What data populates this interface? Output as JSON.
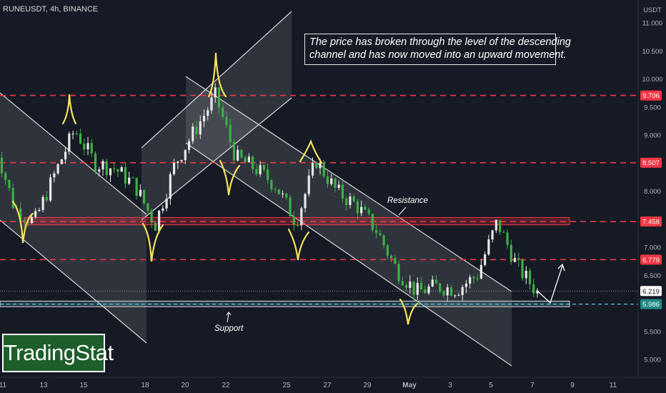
{
  "header": {
    "title": "RUNEUSDT, 4h, BINANCE"
  },
  "annotation": {
    "line1": "The price has broken through the level of the descending",
    "line2": "channel and has now moved into an upward movement."
  },
  "logo": {
    "text": "TradingStat"
  },
  "labels": {
    "resistance": "Resistance",
    "support": "Support"
  },
  "colors": {
    "background": "#161a25",
    "red_level": "#f23645",
    "up_candle": "#e8e8e8",
    "down_candle": "#3bb143",
    "support_zone": "#5ec3d6",
    "wave": "#f5e25a"
  },
  "chart_data": {
    "type": "candlestick",
    "title": "RUNEUSDT, 4h, BINANCE",
    "currency": "USDT",
    "ylim": [
      4.75,
      11.3
    ],
    "y_ticks": [
      "11.000",
      "10.500",
      "10.000",
      "9.500",
      "9.000",
      "8.500",
      "8.000",
      "7.500",
      "7.000",
      "6.500",
      "6.000",
      "5.500",
      "5.000"
    ],
    "x_ticks": [
      "11",
      "13",
      "15",
      "18",
      "20",
      "22",
      "25",
      "27",
      "29",
      "May",
      "3",
      "5",
      "7",
      "9",
      "11"
    ],
    "price_levels": [
      {
        "label": "9.706",
        "value": 9.706,
        "color": "red"
      },
      {
        "label": "8.507",
        "value": 8.507,
        "color": "red"
      },
      {
        "label": "7.458",
        "value": 7.458,
        "color": "red"
      },
      {
        "label": "6.779",
        "value": 6.779,
        "color": "red"
      },
      {
        "label": "6.219",
        "value": 6.219,
        "color": "last"
      },
      {
        "label": "5.986",
        "value": 5.986,
        "color": "teal"
      }
    ],
    "zones": [
      {
        "name": "Resistance",
        "low": 7.4,
        "high": 7.53
      },
      {
        "name": "Support",
        "low": 5.94,
        "high": 6.04
      }
    ],
    "close_path": [
      [
        "Apr 10",
        8.9
      ],
      [
        "Apr 11",
        7.7
      ],
      [
        "Apr 12",
        7.45
      ],
      [
        "Apr 13",
        8.3
      ],
      [
        "Apr 14",
        9.1
      ],
      [
        "Apr 15",
        8.5
      ],
      [
        "Apr 16",
        8.4
      ],
      [
        "Apr 17",
        8.1
      ],
      [
        "Apr 18",
        7.4
      ],
      [
        "Apr 19",
        8.5
      ],
      [
        "Apr 20",
        9.1
      ],
      [
        "Apr 21",
        9.7
      ],
      [
        "Apr 22",
        8.6
      ],
      [
        "Apr 23",
        8.4
      ],
      [
        "Apr 24",
        8.1
      ],
      [
        "Apr 25",
        7.45
      ],
      [
        "Apr 26",
        8.55
      ],
      [
        "Apr 27",
        8.0
      ],
      [
        "Apr 28",
        7.75
      ],
      [
        "Apr 29",
        7.3
      ],
      [
        "Apr 30",
        6.6
      ],
      [
        "May 1",
        6.2
      ],
      [
        "May 2",
        6.3
      ],
      [
        "May 3",
        6.25
      ],
      [
        "May 4",
        6.5
      ],
      [
        "May 5",
        7.45
      ],
      [
        "May 6",
        6.65
      ],
      [
        "May 7",
        6.2
      ]
    ]
  }
}
